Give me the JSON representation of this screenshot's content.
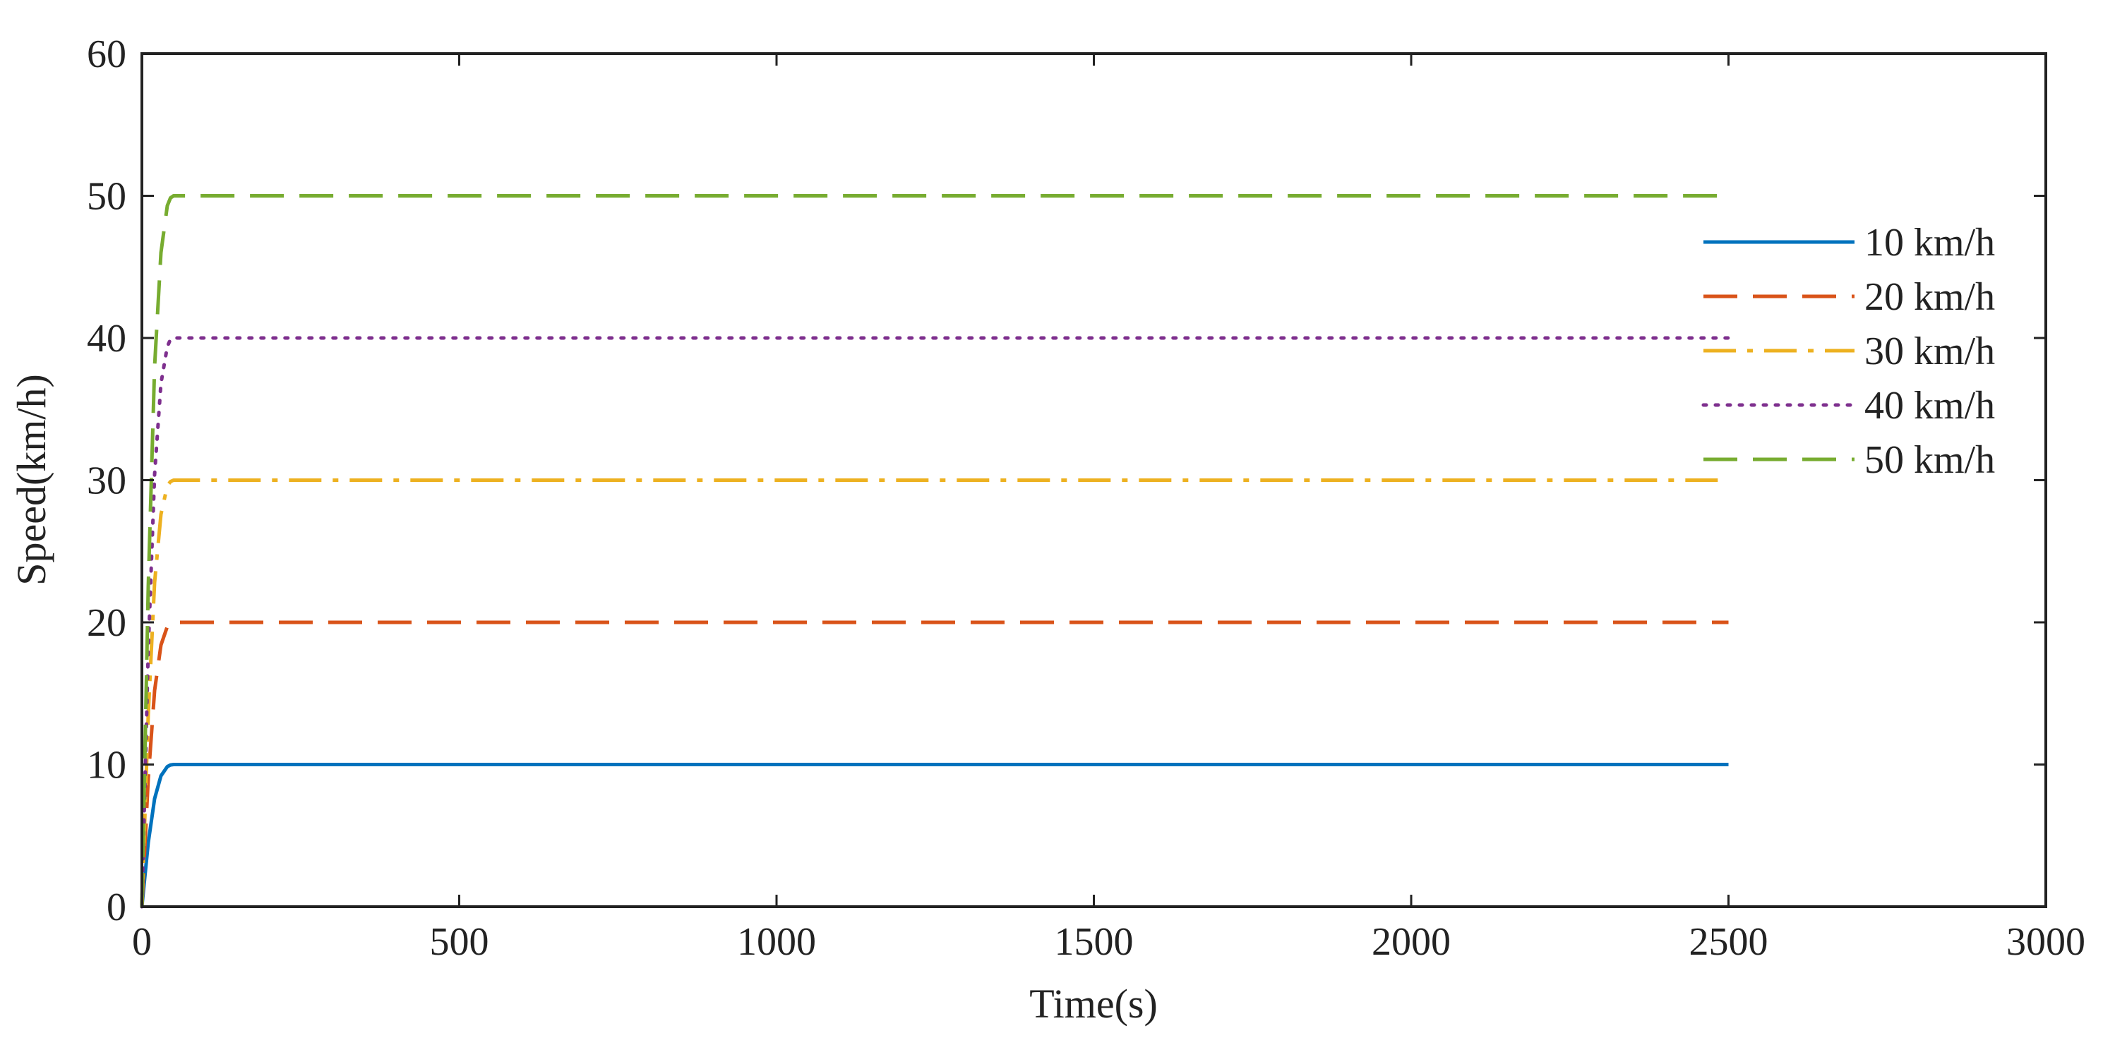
{
  "chart_data": {
    "type": "line",
    "title": "",
    "xlabel": "Time(s)",
    "ylabel": "Speed(km/h)",
    "xlim": [
      0,
      3000
    ],
    "ylim": [
      0,
      60
    ],
    "xticks": [
      0,
      500,
      1000,
      1500,
      2000,
      2500,
      3000
    ],
    "yticks": [
      0,
      10,
      20,
      30,
      40,
      50,
      60
    ],
    "xtick_labels": [
      "0",
      "500",
      "1000",
      "1500",
      "2000",
      "2500",
      "3000"
    ],
    "ytick_labels": [
      "0",
      "10",
      "20",
      "30",
      "40",
      "50",
      "60"
    ],
    "grid": false,
    "legend_position": "upper-right",
    "series": [
      {
        "name": "10 km/h",
        "color": "#0072BD",
        "style": "solid",
        "x": [
          0,
          10,
          20,
          30,
          40,
          45,
          50,
          2500
        ],
        "y": [
          0,
          4.5,
          7.6,
          9.2,
          9.85,
          9.97,
          10,
          10
        ]
      },
      {
        "name": "20 km/h",
        "color": "#D95319",
        "style": "dashed",
        "x": [
          0,
          10,
          20,
          30,
          40,
          45,
          50,
          2500
        ],
        "y": [
          0,
          9,
          15.2,
          18.4,
          19.7,
          19.95,
          20,
          20
        ]
      },
      {
        "name": "30 km/h",
        "color": "#EDB120",
        "style": "dashdot",
        "x": [
          0,
          10,
          20,
          30,
          40,
          45,
          50,
          2500
        ],
        "y": [
          0,
          13.5,
          22.8,
          27.6,
          29.6,
          29.9,
          30,
          30
        ]
      },
      {
        "name": "40 km/h",
        "color": "#7E2F8E",
        "style": "dotted",
        "x": [
          0,
          10,
          20,
          30,
          40,
          45,
          50,
          2500
        ],
        "y": [
          0,
          18,
          30.4,
          36.8,
          39.4,
          39.9,
          40,
          40
        ]
      },
      {
        "name": "50 km/h",
        "color": "#77AC30",
        "style": "dashed",
        "x": [
          0,
          10,
          20,
          30,
          40,
          45,
          50,
          2500
        ],
        "y": [
          0,
          22.5,
          38,
          46,
          49.3,
          49.85,
          50,
          50
        ]
      }
    ]
  }
}
